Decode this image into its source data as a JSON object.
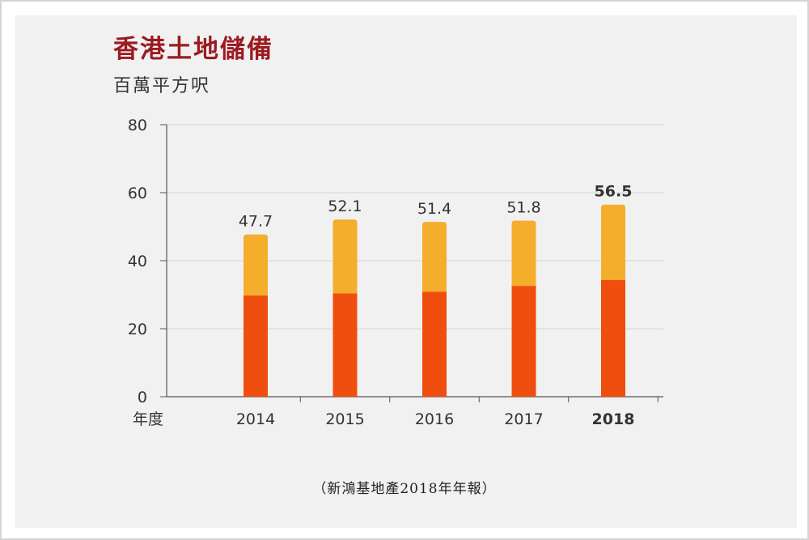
{
  "chart_data": {
    "type": "bar",
    "title": "香港土地儲備",
    "ylabel": "百萬平方呎",
    "xlabel": "年度",
    "categories": [
      "2014",
      "2015",
      "2016",
      "2017",
      "2018"
    ],
    "totals": [
      47.7,
      52.1,
      51.4,
      51.8,
      56.5
    ],
    "total_labels": [
      "47.7",
      "52.1",
      "51.4",
      "51.8",
      "56.5"
    ],
    "highlight_category": "2018",
    "series": [
      {
        "values": [
          29.8,
          30.4,
          30.9,
          32.6,
          34.3
        ],
        "color": "#f04e0e"
      },
      {
        "values": [
          17.9,
          21.7,
          20.5,
          19.2,
          22.2
        ],
        "color": "#f5ad2c"
      }
    ],
    "stacked": true,
    "ylim": [
      0,
      80
    ],
    "yticks": [
      "0",
      "20",
      "40",
      "60",
      "80"
    ],
    "grid": true
  },
  "source": "（新鴻基地產2018年年報）"
}
